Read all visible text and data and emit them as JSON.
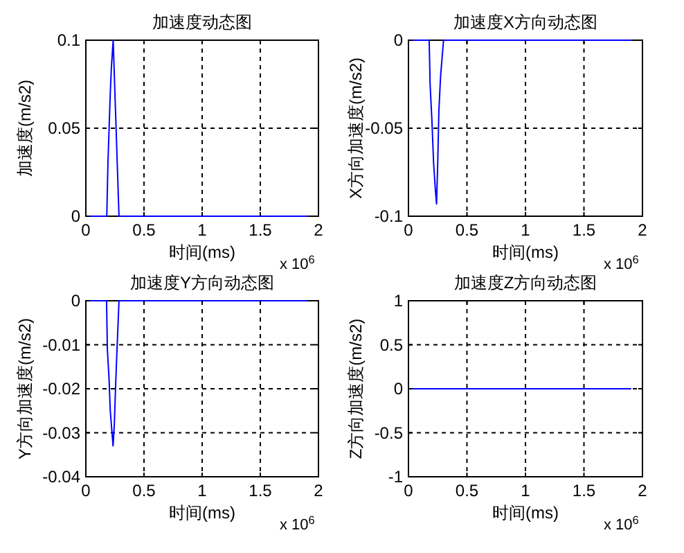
{
  "chart_data": [
    {
      "type": "line",
      "title": "加速度动态图",
      "xlabel": "时间(ms)",
      "ylabel": "加速度(m/s2)",
      "annotations": [
        "x 10$^{6}$"
      ],
      "x": [
        0,
        0.18,
        0.19,
        0.2,
        0.21,
        0.22,
        0.235,
        0.25,
        0.26,
        0.27,
        0.285,
        1.9
      ],
      "series": [
        {
          "color": "#0000ff",
          "values": [
            0,
            0,
            0.03,
            0.05,
            0.07,
            0.085,
            0.1,
            0.07,
            0.05,
            0.03,
            0,
            0
          ]
        }
      ],
      "xlim": [
        0,
        2
      ],
      "xticks": [
        0,
        0.5,
        1,
        1.5,
        2
      ],
      "ylim": [
        0,
        0.1
      ],
      "yticks": [
        0,
        0.05,
        0.1
      ],
      "grid": true
    },
    {
      "type": "line",
      "title": "加速度X方向动态图",
      "xlabel": "时间(ms)",
      "ylabel": "X方向加速度(m/s2)",
      "annotations": [
        "x 10$^{6}$"
      ],
      "x": [
        0,
        0.177,
        0.185,
        0.2,
        0.215,
        0.23,
        0.24,
        0.25,
        0.26,
        0.275,
        0.3,
        1.9
      ],
      "series": [
        {
          "color": "#0000ff",
          "values": [
            0,
            0,
            -0.025,
            -0.045,
            -0.07,
            -0.085,
            -0.093,
            -0.07,
            -0.04,
            -0.02,
            0,
            0
          ]
        }
      ],
      "xlim": [
        0,
        2
      ],
      "xticks": [
        0,
        0.5,
        1,
        1.5,
        2
      ],
      "ylim": [
        -0.1,
        0
      ],
      "yticks": [
        -0.1,
        -0.05,
        0
      ],
      "grid": true
    },
    {
      "type": "line",
      "title": "加速度Y方向动态图",
      "xlabel": "时间(ms)",
      "ylabel": "Y方向加速度(m/s2)",
      "annotations": [
        "x 10$^{6}$"
      ],
      "x": [
        0,
        0.178,
        0.185,
        0.2,
        0.21,
        0.225,
        0.234,
        0.245,
        0.255,
        0.265,
        0.285,
        1.9
      ],
      "series": [
        {
          "color": "#0000ff",
          "values": [
            0,
            0,
            -0.011,
            -0.018,
            -0.025,
            -0.03,
            -0.033,
            -0.028,
            -0.02,
            -0.013,
            0,
            0
          ]
        }
      ],
      "xlim": [
        0,
        2
      ],
      "xticks": [
        0,
        0.5,
        1,
        1.5,
        2
      ],
      "ylim": [
        -0.04,
        0
      ],
      "yticks": [
        -0.04,
        -0.03,
        -0.02,
        -0.01,
        0
      ],
      "grid": true
    },
    {
      "type": "line",
      "title": "加速度Z方向动态图",
      "xlabel": "时间(ms)",
      "ylabel": "Z方向加速度(m/s2)",
      "annotations": [
        "x 10$^{6}$"
      ],
      "x": [
        0,
        1.9
      ],
      "series": [
        {
          "color": "#0000ff",
          "values": [
            0,
            0
          ]
        }
      ],
      "xlim": [
        0,
        2
      ],
      "xticks": [
        0,
        0.5,
        1,
        1.5,
        2
      ],
      "ylim": [
        -1,
        1
      ],
      "yticks": [
        -1,
        -0.5,
        0,
        0.5,
        1
      ],
      "grid": true
    }
  ]
}
